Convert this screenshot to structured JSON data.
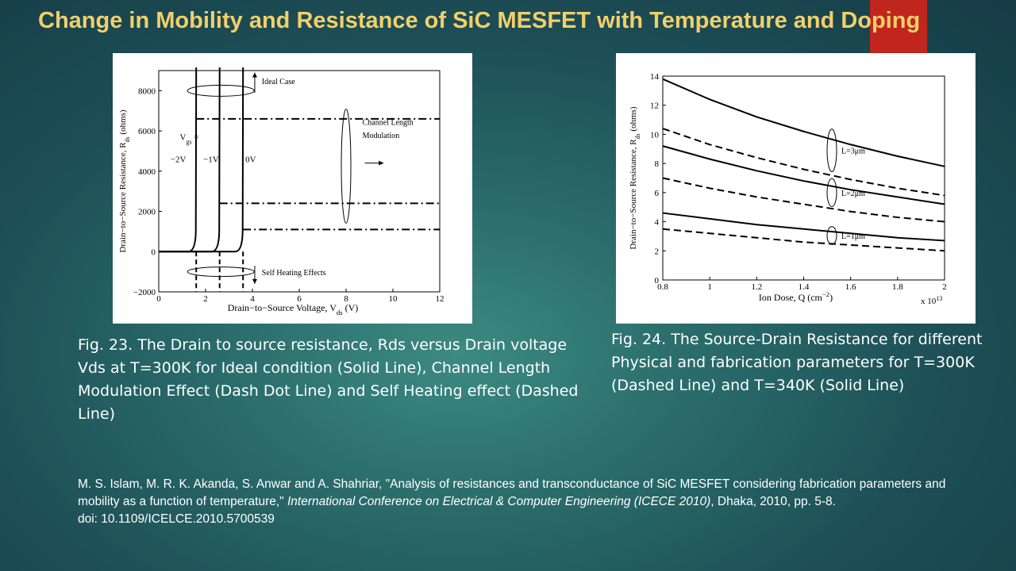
{
  "slide": {
    "title": "Change in Mobility and Resistance of SiC MESFET with Temperature and Doping",
    "accent_color": "#c0261e",
    "title_color": "#f2cf6b"
  },
  "captions": {
    "fig23": "Fig. 23. The Drain to source resistance, Rds versus Drain voltage Vds at T=300K for Ideal condition (Solid Line), Channel Length Modulation Effect (Dash Dot Line) and Self Heating effect (Dashed Line)",
    "fig24": "Fig. 24. The Source-Drain Resistance for different Physical and fabrication parameters for T=300K (Dashed Line) and T=340K (Solid Line)"
  },
  "reference": {
    "part1": "M. S. Islam, M. R. K. Akanda, S. Anwar and A. Shahriar, \"Analysis of resistances and transconductance of SiC MESFET considering fabrication parameters and mobility as a function of temperature,\"",
    "venue": "International Conference on Electrical & Computer Engineering (ICECE 2010)",
    "part2": ", Dhaka, 2010, pp. 5-8.",
    "doi": "doi: 10.1109/ICELCE.2010.5700539"
  },
  "chart_data": [
    {
      "type": "line",
      "xlabel": "Drain−to−Source Voltage, V",
      "xlabel_sub": "ds",
      "xlabel_unit": " (V)",
      "ylabel": "Drain−to−Source Resistance, R",
      "ylabel_sub": "ds",
      "ylabel_unit": " (ohms)",
      "xlim": [
        0,
        12
      ],
      "ylim": [
        -2000,
        9000
      ],
      "xticks": [
        0,
        2,
        4,
        6,
        8,
        10,
        12
      ],
      "yticks": [
        -2000,
        0,
        2000,
        4000,
        6000,
        8000
      ],
      "vgs_label_1": "V",
      "vgs_label_sub": "gs",
      "vgs_label_2": " =",
      "vgs_values": [
        "−2V",
        "−1V",
        "0V"
      ],
      "knee_voltages": [
        1.6,
        2.6,
        3.6
      ],
      "baseline_resistance": 0,
      "clm_levels": [
        6600,
        2400,
        1100
      ],
      "annotations": {
        "ideal": "Ideal Case",
        "clm_1": "Channel Length",
        "clm_2": "Modulation",
        "self_heating": "Self Heating Effects"
      },
      "series": [
        {
          "style": "solid",
          "values_desc": "ideal"
        },
        {
          "style": "dash-dot",
          "values_desc": "channel length modulation"
        },
        {
          "style": "dashed",
          "values_desc": "self heating"
        }
      ]
    },
    {
      "type": "line",
      "xlabel": "Ion Dose, Q (cm",
      "xlabel_sup": "−2",
      "xlabel_end": ")",
      "x_multiplier": "x 10",
      "x_multiplier_exp": "13",
      "ylabel": "Drain−to−Source Resistance, R",
      "ylabel_sub": "ds",
      "ylabel_unit": " (ohms)",
      "xlim": [
        0.8,
        2
      ],
      "ylim": [
        0,
        14
      ],
      "xticks": [
        "0.8",
        "1",
        "1.2",
        "1.4",
        "1.6",
        "1.8",
        "2"
      ],
      "yticks": [
        0,
        2,
        4,
        6,
        8,
        10,
        12,
        14
      ],
      "x": [
        0.8,
        1.0,
        1.2,
        1.4,
        1.6,
        1.8,
        2.0
      ],
      "series": [
        {
          "label": "L=3μm",
          "temp": "340K",
          "style": "solid",
          "values": [
            13.8,
            12.4,
            11.2,
            10.2,
            9.3,
            8.5,
            7.8
          ]
        },
        {
          "label": "L=3μm",
          "temp": "300K",
          "style": "dashed",
          "values": [
            10.4,
            9.3,
            8.4,
            7.6,
            6.9,
            6.3,
            5.8
          ]
        },
        {
          "label": "L=2μm",
          "temp": "340K",
          "style": "solid",
          "values": [
            9.2,
            8.3,
            7.5,
            6.8,
            6.2,
            5.7,
            5.2
          ]
        },
        {
          "label": "L=2μm",
          "temp": "300K",
          "style": "dashed",
          "values": [
            7.0,
            6.3,
            5.7,
            5.2,
            4.7,
            4.3,
            4.0
          ]
        },
        {
          "label": "L=1μm",
          "temp": "340K",
          "style": "solid",
          "values": [
            4.6,
            4.2,
            3.8,
            3.5,
            3.2,
            2.9,
            2.7
          ]
        },
        {
          "label": "L=1μm",
          "temp": "300K",
          "style": "dashed",
          "values": [
            3.5,
            3.2,
            2.9,
            2.6,
            2.4,
            2.2,
            2.0
          ]
        }
      ],
      "group_labels": [
        "L=3μm",
        "L=2μm",
        "L=1μm"
      ]
    }
  ]
}
